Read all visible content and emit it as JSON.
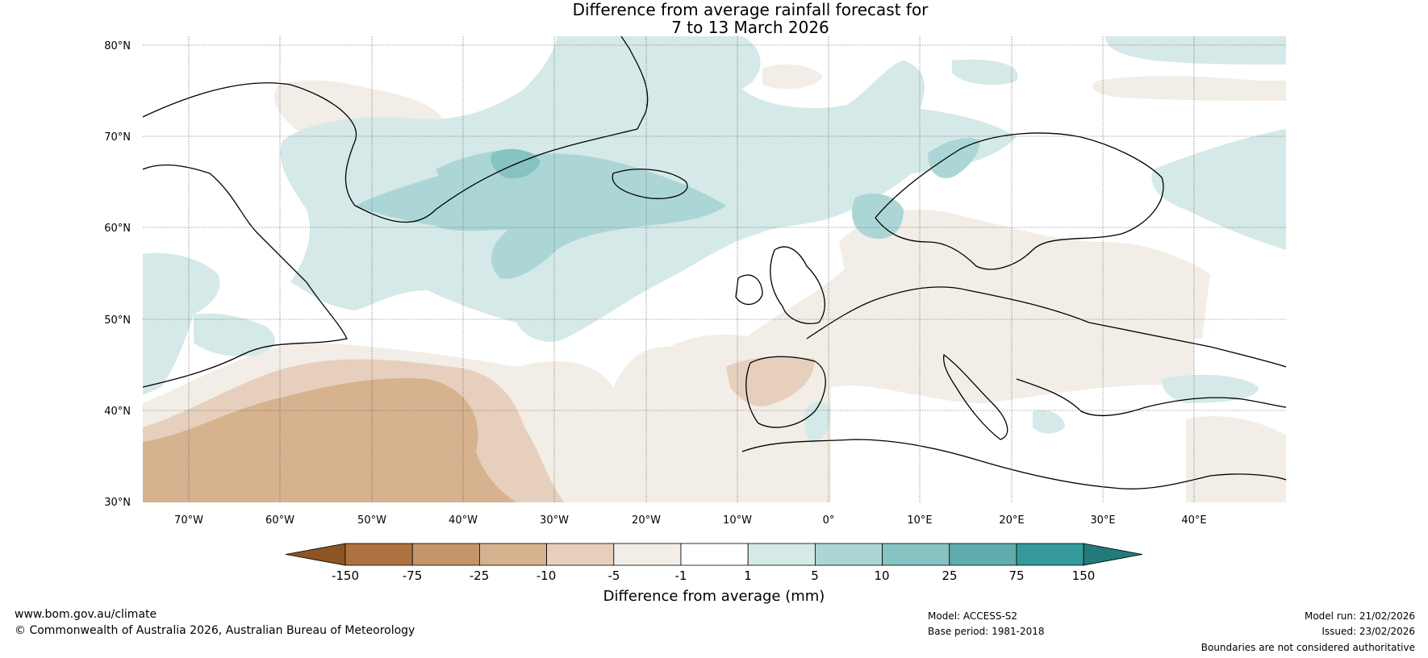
{
  "title": {
    "line1": "Difference from average rainfall forecast for",
    "line2": "7 to 13 March 2026"
  },
  "map": {
    "lat_labels": [
      "80°N",
      "70°N",
      "60°N",
      "50°N",
      "40°N",
      "30°N"
    ],
    "lon_labels": [
      "70°W",
      "60°W",
      "50°W",
      "40°W",
      "30°W",
      "20°W",
      "10°W",
      "0°",
      "10°E",
      "20°E",
      "30°E",
      "40°E"
    ]
  },
  "colorbar": {
    "label": "Difference from average (mm)",
    "ticks": [
      "-150",
      "-75",
      "-25",
      "-10",
      "-5",
      "-1",
      "1",
      "5",
      "10",
      "25",
      "75",
      "150"
    ],
    "colors": {
      "under": "#8c5524",
      "bins": [
        "#ae7240",
        "#c4946a",
        "#d6b28f",
        "#e6d0bd",
        "#f3ede7",
        "#ffffff",
        "#d5e9e8",
        "#acd6d6",
        "#86c3c2",
        "#5fadae",
        "#349a9b"
      ],
      "over": "#237a7b"
    }
  },
  "footer": {
    "url": "www.bom.gov.au/climate",
    "copyright": "© Commonwealth of Australia 2026, Australian Bureau of Meteorology",
    "model": "Model: ACCESS-S2",
    "base_period": "Base period: 1981-2018",
    "model_run": "Model run: 21/02/2026",
    "issued": "Issued: 23/02/2026",
    "disclaimer": "Boundaries are not considered authoritative"
  }
}
